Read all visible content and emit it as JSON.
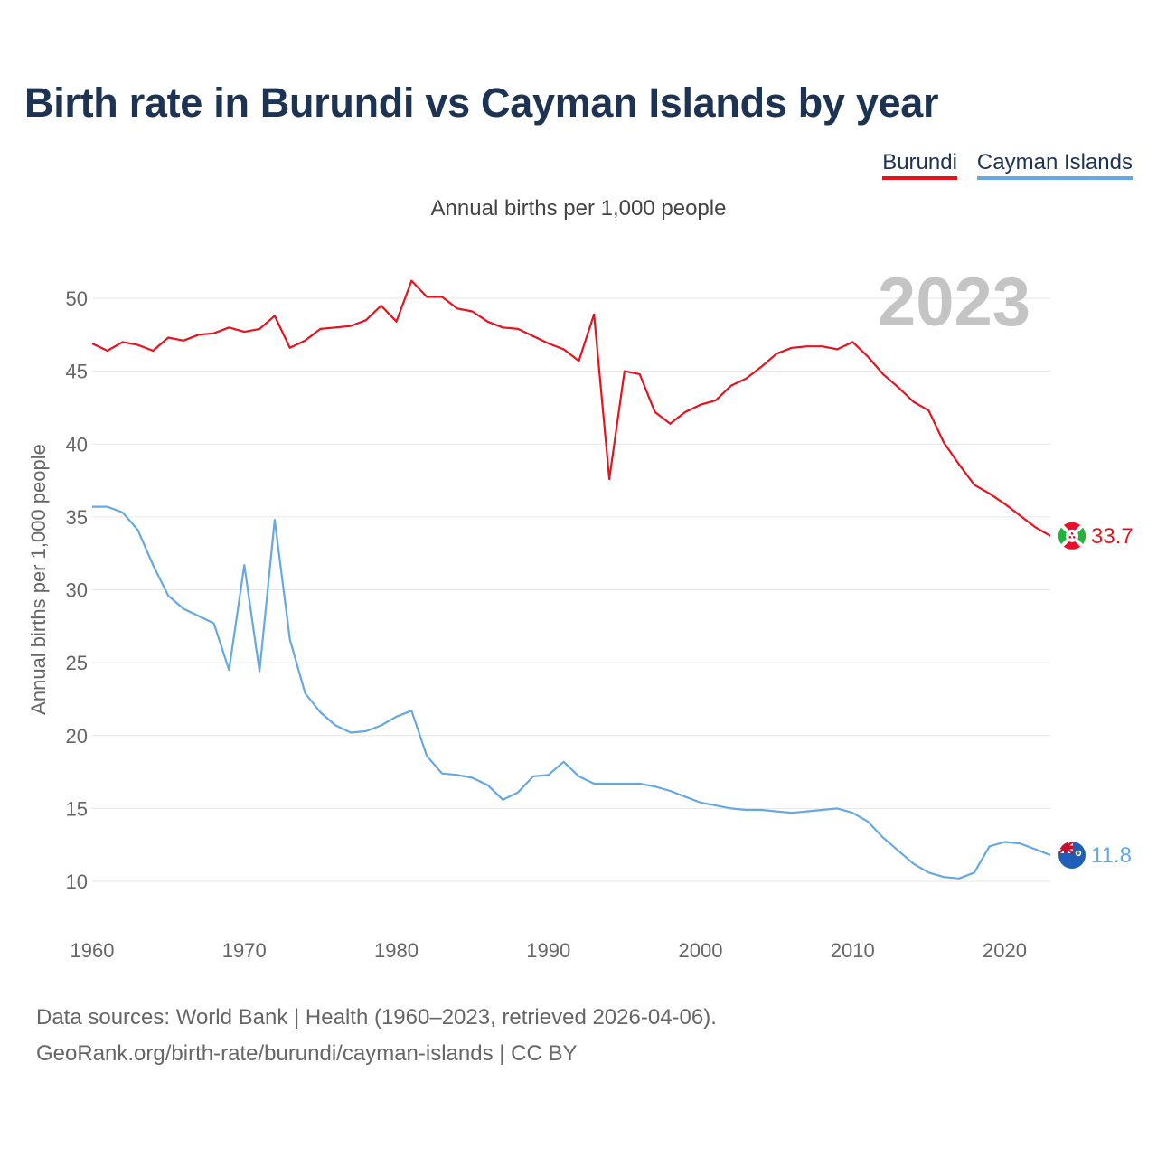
{
  "title": "Birth rate in Burundi vs Cayman Islands by year",
  "subtitle": "Annual births per 1,000 people",
  "legend": [
    {
      "label": "Burundi",
      "color": "#e8121d"
    },
    {
      "label": "Cayman Islands",
      "color": "#66a8e4"
    }
  ],
  "year_label": "2023",
  "footer": {
    "line1": "Data sources: World Bank | Health (1960–2023, retrieved 2026-04-06).",
    "line2": "GeoRank.org/birth-rate/burundi/cayman-islands | CC BY"
  },
  "chart_data": {
    "type": "line",
    "title": "Birth rate in Burundi vs Cayman Islands by year",
    "xlabel": "",
    "ylabel": "Annual births per 1,000 people",
    "xlim": [
      1960,
      2023
    ],
    "ylim": [
      7,
      53
    ],
    "xticks": [
      1960,
      1970,
      1980,
      1990,
      2000,
      2010,
      2020
    ],
    "yticks": [
      10,
      15,
      20,
      25,
      30,
      35,
      40,
      45,
      50
    ],
    "grid": true,
    "legend": "top-right",
    "x": [
      1960,
      1961,
      1962,
      1963,
      1964,
      1965,
      1966,
      1967,
      1968,
      1969,
      1970,
      1971,
      1972,
      1973,
      1974,
      1975,
      1976,
      1977,
      1978,
      1979,
      1980,
      1981,
      1982,
      1983,
      1984,
      1985,
      1986,
      1987,
      1988,
      1989,
      1990,
      1991,
      1992,
      1993,
      1994,
      1995,
      1996,
      1997,
      1998,
      1999,
      2000,
      2001,
      2002,
      2003,
      2004,
      2005,
      2006,
      2007,
      2008,
      2009,
      2010,
      2011,
      2012,
      2013,
      2014,
      2015,
      2016,
      2017,
      2018,
      2019,
      2020,
      2021,
      2022,
      2023
    ],
    "series": [
      {
        "name": "Burundi",
        "color": "#e8121d",
        "end_label": "33.7",
        "values": [
          46.9,
          46.4,
          47.0,
          46.8,
          46.4,
          47.3,
          47.1,
          47.5,
          47.6,
          48.0,
          47.7,
          47.9,
          48.8,
          46.6,
          47.1,
          47.9,
          48.0,
          48.1,
          48.5,
          49.5,
          48.4,
          51.2,
          50.1,
          50.1,
          49.3,
          49.1,
          48.4,
          48.0,
          47.9,
          47.4,
          46.9,
          46.5,
          45.7,
          48.9,
          37.6,
          45.0,
          44.8,
          42.2,
          41.4,
          42.2,
          42.7,
          43.0,
          44.0,
          44.5,
          45.3,
          46.2,
          46.6,
          46.7,
          46.7,
          46.5,
          47.0,
          46.0,
          44.8,
          43.9,
          42.9,
          42.3,
          40.1,
          38.6,
          37.2,
          36.6,
          35.9,
          35.1,
          34.3,
          33.7
        ]
      },
      {
        "name": "Cayman Islands",
        "color": "#66a8e4",
        "end_label": "11.8",
        "values": [
          35.7,
          35.7,
          35.3,
          34.1,
          31.7,
          29.6,
          28.7,
          28.2,
          27.7,
          24.5,
          31.7,
          24.4,
          34.8,
          26.6,
          22.9,
          21.6,
          20.7,
          20.2,
          20.3,
          20.7,
          21.3,
          21.7,
          18.6,
          17.4,
          17.3,
          17.1,
          16.6,
          15.6,
          16.1,
          17.2,
          17.3,
          18.2,
          17.2,
          16.7,
          16.7,
          16.7,
          16.7,
          16.5,
          16.2,
          15.8,
          15.4,
          15.2,
          15.0,
          14.9,
          14.9,
          14.8,
          14.7,
          14.8,
          14.9,
          15.0,
          14.7,
          14.1,
          13.0,
          12.1,
          11.2,
          10.6,
          10.3,
          10.2,
          10.6,
          12.4,
          12.7,
          12.6,
          12.2,
          11.8
        ]
      }
    ]
  }
}
